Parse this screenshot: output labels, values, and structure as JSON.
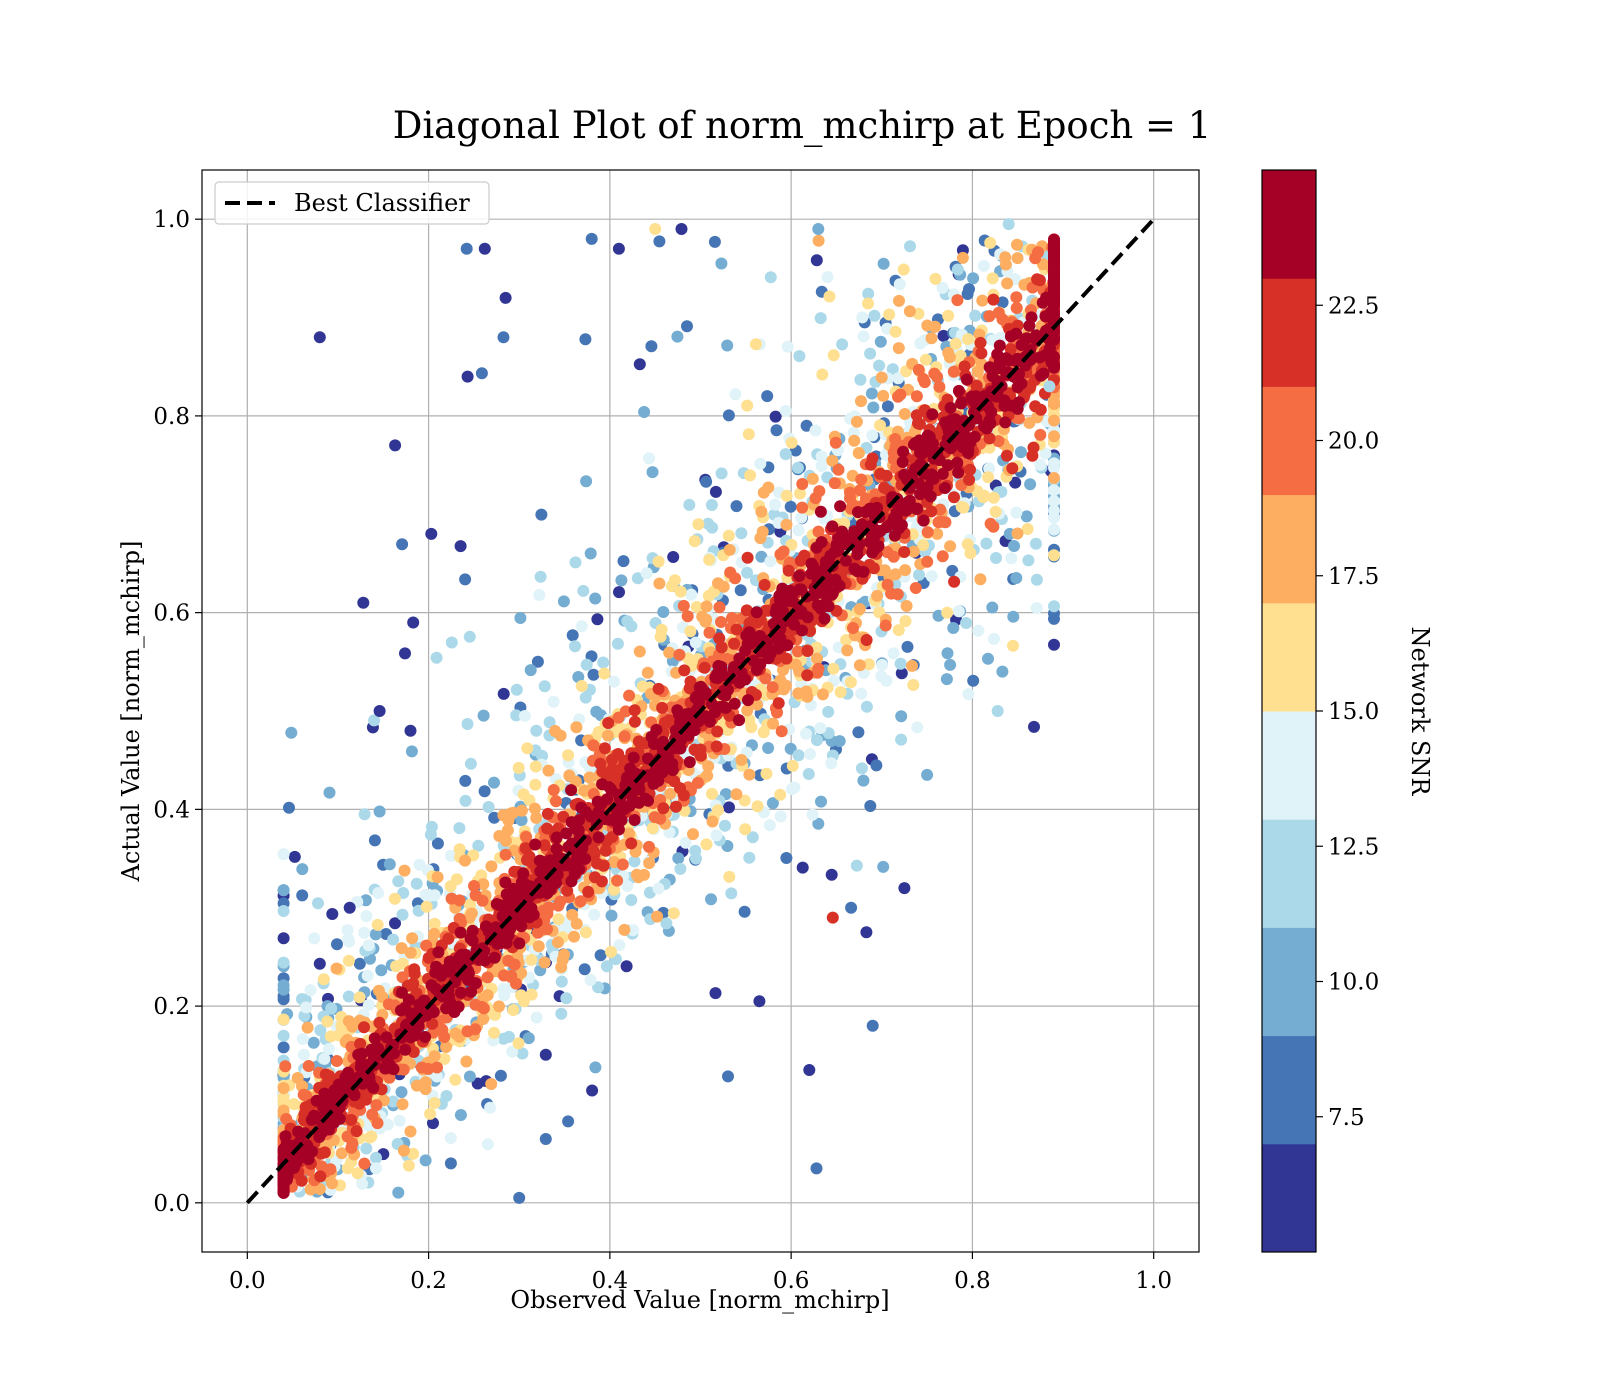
{
  "chart_data": {
    "type": "scatter",
    "title": "Diagonal Plot of norm_mchirp at Epoch = 1",
    "xlabel": "Observed Value [norm_mchirp]",
    "ylabel": "Actual Value [norm_mchirp]",
    "xlim": [
      -0.05,
      1.05
    ],
    "ylim": [
      -0.05,
      1.05
    ],
    "x_ticks": [
      "0.0",
      "0.2",
      "0.4",
      "0.6",
      "0.8",
      "1.0"
    ],
    "y_ticks": [
      "0.0",
      "0.2",
      "0.4",
      "0.6",
      "0.8",
      "1.0"
    ],
    "grid": true,
    "legend": {
      "placement": "top-left",
      "entries": [
        "Best Classifier"
      ]
    },
    "reference_line": {
      "name": "Best Classifier",
      "x": [
        0.0,
        1.0
      ],
      "y": [
        0.0,
        1.0
      ],
      "style": "dashed",
      "color": "#000000"
    },
    "colorbar": {
      "label": "Network SNR",
      "range": [
        5.0,
        25.0
      ],
      "ticks": [
        "7.5",
        "10.0",
        "12.5",
        "15.0",
        "17.5",
        "20.0",
        "22.5"
      ],
      "tick_values": [
        7.5,
        10.0,
        12.5,
        15.0,
        17.5,
        20.0,
        22.5
      ],
      "bins": 10,
      "colors": [
        "#313695",
        "#4575b4",
        "#74add1",
        "#abd9e9",
        "#e0f3f8",
        "#fee090",
        "#fdae61",
        "#f46d43",
        "#d73027",
        "#a50026"
      ]
    },
    "series": [
      {
        "values": [
          [
            0.08,
            0.88,
            5.5
          ],
          [
            0.163,
            0.77,
            6.0
          ],
          [
            0.128,
            0.61,
            6.2
          ],
          [
            0.146,
            0.5,
            5.8
          ],
          [
            0.183,
            0.59,
            6.1
          ],
          [
            0.203,
            0.68,
            6.3
          ],
          [
            0.18,
            0.48,
            5.9
          ],
          [
            0.242,
            0.97,
            7.8
          ],
          [
            0.262,
            0.97,
            5.6
          ],
          [
            0.285,
            0.92,
            5.7
          ],
          [
            0.38,
            0.98,
            8.0
          ],
          [
            0.41,
            0.97,
            6.0
          ],
          [
            0.479,
            0.99,
            5.5
          ],
          [
            0.63,
            0.99,
            9.0
          ],
          [
            0.45,
            0.99,
            16.0
          ],
          [
            0.243,
            0.84,
            6.5
          ],
          [
            0.08,
            0.243,
            6.0
          ],
          [
            0.113,
            0.3,
            6.5
          ],
          [
            0.628,
            0.035,
            8.0
          ],
          [
            0.3,
            0.005,
            7.0
          ],
          [
            0.62,
            0.135,
            6.0
          ],
          [
            0.69,
            0.18,
            8.5
          ],
          [
            0.725,
            0.32,
            6.2
          ],
          [
            0.683,
            0.275,
            5.9
          ],
          [
            0.75,
            0.435,
            9.5
          ],
          [
            0.646,
            0.29,
            22.8
          ],
          [
            0.87,
            0.67,
            12.0
          ],
          [
            0.565,
            0.205,
            6.4
          ],
          [
            0.885,
            0.83,
            12.0
          ],
          [
            0.84,
            0.995,
            12.5
          ]
        ]
      }
    ]
  }
}
